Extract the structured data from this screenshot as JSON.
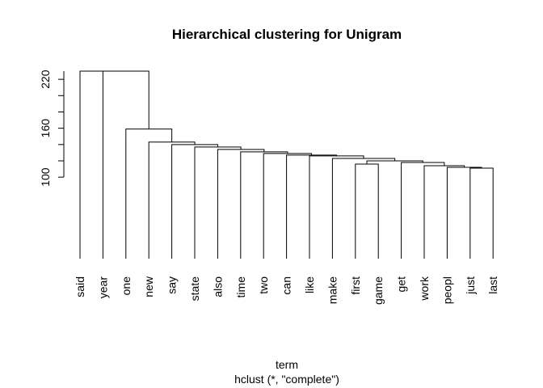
{
  "chart_data": {
    "type": "dendrogram",
    "title": "Hierarchical clustering for Unigram",
    "xlabel": "term",
    "sub": "hclust (*, \"complete\")",
    "labels": [
      "said",
      "year",
      "one",
      "new",
      "say",
      "state",
      "also",
      "time",
      "two",
      "can",
      "like",
      "make",
      "first",
      "game",
      "get",
      "work",
      "peopl",
      "just",
      "last"
    ],
    "leaf_baseline": 0,
    "ylim": [
      0,
      236
    ],
    "yticks": [
      100,
      160,
      220
    ],
    "merges": [
      {
        "i": 1,
        "left": -18,
        "right": -19,
        "height": 111
      },
      {
        "i": 2,
        "left": -17,
        "right": 1,
        "height": 112
      },
      {
        "i": 3,
        "left": -16,
        "right": 2,
        "height": 114
      },
      {
        "i": 4,
        "left": -15,
        "right": 3,
        "height": 118
      },
      {
        "i": 5,
        "left": -13,
        "right": -14,
        "height": 116
      },
      {
        "i": 6,
        "left": 5,
        "right": 4,
        "height": 120
      },
      {
        "i": 7,
        "left": -12,
        "right": 6,
        "height": 123
      },
      {
        "i": 8,
        "left": -11,
        "right": 7,
        "height": 126
      },
      {
        "i": 9,
        "left": -10,
        "right": 8,
        "height": 127
      },
      {
        "i": 10,
        "left": -9,
        "right": 9,
        "height": 129
      },
      {
        "i": 11,
        "left": -8,
        "right": 10,
        "height": 131
      },
      {
        "i": 12,
        "left": -7,
        "right": 11,
        "height": 134
      },
      {
        "i": 13,
        "left": -6,
        "right": 12,
        "height": 137
      },
      {
        "i": 14,
        "left": -5,
        "right": 13,
        "height": 140
      },
      {
        "i": 15,
        "left": -4,
        "right": 14,
        "height": 143
      },
      {
        "i": 16,
        "left": -3,
        "right": 15,
        "height": 159
      },
      {
        "i": 17,
        "left": -2,
        "right": 16,
        "height": 230
      },
      {
        "i": 18,
        "left": -1,
        "right": 17,
        "height": 230
      }
    ]
  }
}
